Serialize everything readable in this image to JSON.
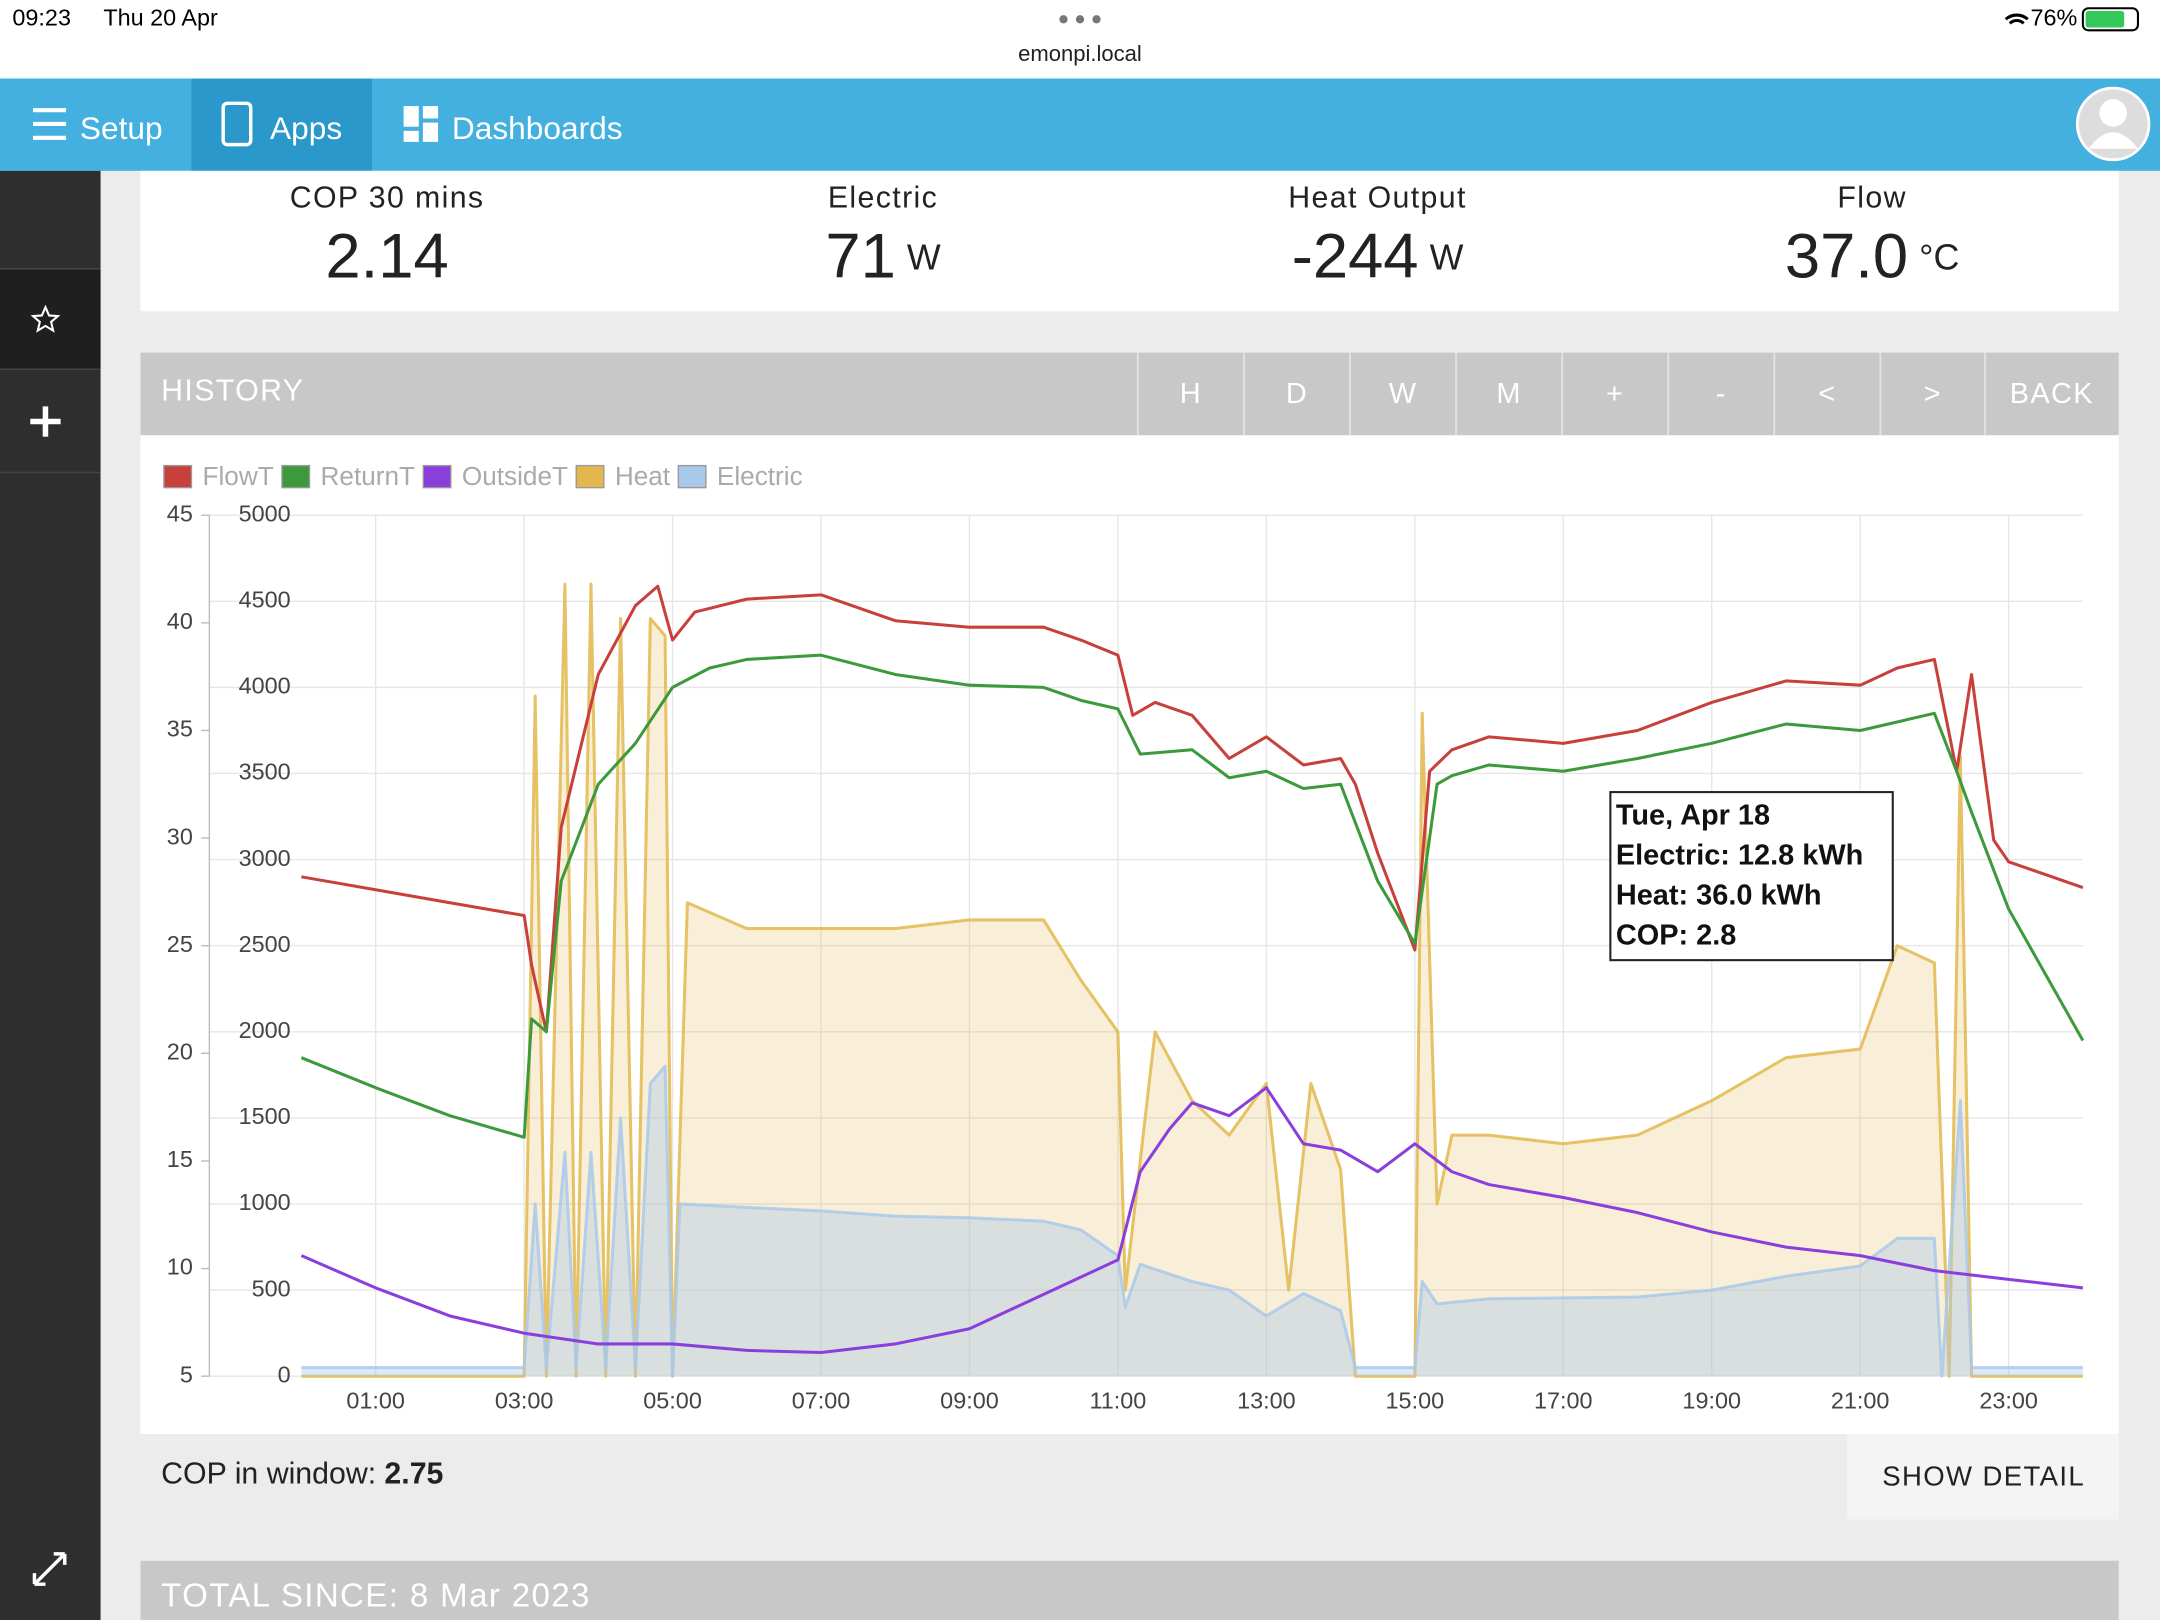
{
  "status_bar": {
    "time": "09:23",
    "date": "Thu 20 Apr",
    "url": "emonpi.local",
    "battery": "76%"
  },
  "nav": {
    "items": [
      "Setup",
      "Apps",
      "Dashboards"
    ]
  },
  "stats": [
    {
      "label": "COP 30 mins",
      "value": "2.14"
    },
    {
      "label": "Electric",
      "value": "71",
      "unit": "W"
    },
    {
      "label": "Heat Output",
      "value": "-244",
      "unit": "W"
    },
    {
      "label": "Flow",
      "value": "37.0",
      "unit": "°C"
    }
  ],
  "history": {
    "title": "HISTORY",
    "buttons": [
      "H",
      "D",
      "W",
      "M",
      "+",
      "-",
      "<",
      ">",
      "BACK"
    ]
  },
  "chart_data": {
    "type": "line",
    "xlim": [
      -1.24,
      24
    ],
    "xticks": [
      {
        "value": 1,
        "label": "01:00"
      },
      {
        "value": 3,
        "label": "03:00"
      },
      {
        "value": 5,
        "label": "05:00"
      },
      {
        "value": 7,
        "label": "07:00"
      },
      {
        "value": 9,
        "label": "09:00"
      },
      {
        "value": 11,
        "label": "11:00"
      },
      {
        "value": 13,
        "label": "13:00"
      },
      {
        "value": 15,
        "label": "15:00"
      },
      {
        "value": 17,
        "label": "17:00"
      },
      {
        "value": 19,
        "label": "19:00"
      },
      {
        "value": 21,
        "label": "21:00"
      },
      {
        "value": 23,
        "label": "23:00"
      }
    ],
    "ylim": [
      5,
      45
    ],
    "yticks": [
      5,
      10,
      15,
      20,
      25,
      30,
      35,
      40,
      45
    ],
    "y2lim": [
      0,
      5000
    ],
    "y2ticks": [
      0,
      500,
      1000,
      1500,
      2000,
      2500,
      3000,
      3500,
      4000,
      4500,
      5000
    ],
    "grid": true,
    "series": [
      {
        "name": "FlowT",
        "color": "#c8403c",
        "x": [
          0,
          1,
          2,
          3,
          3.1,
          3.3,
          3.5,
          4,
          4.5,
          4.8,
          5,
          5.3,
          6,
          7,
          8,
          9,
          10,
          10.5,
          11,
          11.2,
          11.5,
          12,
          12.5,
          13,
          13.5,
          14,
          14.2,
          14.5,
          15,
          15.2,
          15.5,
          16,
          17,
          18,
          19,
          20,
          21,
          21.5,
          22,
          22.3,
          22.5,
          22.8,
          23,
          24
        ],
        "values": [
          28.2,
          27.6,
          27.0,
          26.4,
          24.1,
          21.0,
          30.5,
          37.6,
          40.8,
          41.7,
          39.2,
          40.5,
          41.1,
          41.3,
          40.1,
          39.8,
          39.8,
          39.2,
          38.5,
          35.7,
          36.3,
          35.7,
          33.7,
          34.7,
          33.4,
          33.7,
          32.5,
          29.3,
          24.8,
          33.1,
          34.1,
          34.7,
          34.4,
          35.0,
          36.3,
          37.3,
          37.1,
          37.9,
          38.3,
          33.1,
          37.6,
          29.9,
          28.9,
          27.7
        ]
      },
      {
        "name": "ReturnT",
        "color": "#3c9a3c",
        "x": [
          0,
          1,
          2,
          3,
          3.1,
          3.3,
          3.5,
          4,
          4.5,
          5,
          5.5,
          6,
          7,
          8,
          9,
          10,
          10.5,
          11,
          11.3,
          12,
          12.5,
          13,
          13.5,
          14,
          14.5,
          15,
          15.3,
          15.5,
          16,
          17,
          18,
          19,
          20,
          21,
          22,
          22.3,
          22.5,
          23,
          24
        ],
        "values": [
          19.8,
          18.4,
          17.1,
          16.1,
          21.6,
          21.0,
          28.0,
          32.5,
          34.4,
          37.0,
          37.9,
          38.3,
          38.5,
          37.6,
          37.1,
          37.0,
          36.4,
          36.0,
          33.9,
          34.1,
          32.8,
          33.1,
          32.3,
          32.5,
          28.0,
          25.1,
          32.5,
          32.9,
          33.4,
          33.1,
          33.7,
          34.4,
          35.3,
          35.0,
          35.8,
          33.1,
          31.2,
          26.7,
          20.6
        ]
      },
      {
        "name": "OutsideT",
        "color": "#8a3fdc",
        "x": [
          0,
          1,
          2,
          3,
          4,
          5,
          6,
          7,
          8,
          9,
          10,
          11,
          11.3,
          11.7,
          12,
          12.5,
          13,
          13.5,
          14,
          14.5,
          15,
          15.5,
          16,
          17,
          18,
          19,
          20,
          21,
          22,
          23,
          24
        ],
        "values": [
          10.6,
          9.1,
          7.8,
          7.0,
          6.5,
          6.5,
          6.2,
          6.1,
          6.5,
          7.2,
          8.8,
          10.4,
          14.5,
          16.5,
          17.7,
          17.1,
          18.4,
          15.8,
          15.5,
          14.5,
          15.8,
          14.5,
          13.9,
          13.3,
          12.6,
          11.7,
          11.0,
          10.6,
          9.9,
          9.5,
          9.1
        ]
      },
      {
        "name": "Heat",
        "color": "#e2b84e",
        "axis": "y2",
        "area": true,
        "x": [
          0,
          3,
          3.15,
          3.3,
          3.55,
          3.7,
          3.9,
          4.1,
          4.3,
          4.5,
          4.7,
          4.9,
          5.0,
          5.2,
          6,
          7,
          8,
          9,
          10,
          10.5,
          11,
          11.1,
          11.5,
          12,
          12.5,
          13,
          13.3,
          13.6,
          14,
          14.2,
          15,
          15.1,
          15.3,
          15.5,
          16,
          17,
          18,
          19,
          20,
          21,
          21.5,
          22,
          22.2,
          22.35,
          22.5,
          24
        ],
        "values": [
          0,
          0,
          3950,
          0,
          4600,
          0,
          4600,
          0,
          4400,
          0,
          4400,
          4300,
          0,
          2750,
          2600,
          2600,
          2600,
          2650,
          2650,
          2300,
          2000,
          500,
          2000,
          1600,
          1400,
          1700,
          500,
          1700,
          1200,
          0,
          0,
          3850,
          1000,
          1400,
          1400,
          1350,
          1400,
          1600,
          1850,
          1900,
          2500,
          2400,
          0,
          3600,
          0,
          0
        ]
      },
      {
        "name": "Electric",
        "color": "#a9c9ea",
        "axis": "y2",
        "area": true,
        "x": [
          0,
          3,
          3.15,
          3.3,
          3.55,
          3.7,
          3.9,
          4.1,
          4.3,
          4.5,
          4.7,
          4.9,
          5.0,
          5.1,
          6,
          7,
          8,
          9,
          10,
          10.5,
          11,
          11.1,
          11.3,
          12,
          12.5,
          13,
          13.5,
          14,
          14.2,
          15,
          15.1,
          15.3,
          16,
          18,
          19,
          20,
          21,
          21.5,
          22,
          22.1,
          22.35,
          22.5,
          24
        ],
        "values": [
          50,
          50,
          1000,
          50,
          1300,
          50,
          1300,
          50,
          1500,
          50,
          1700,
          1800,
          0,
          1000,
          980,
          960,
          930,
          920,
          900,
          850,
          700,
          400,
          650,
          550,
          500,
          350,
          480,
          380,
          50,
          50,
          550,
          420,
          450,
          460,
          500,
          580,
          640,
          800,
          800,
          0,
          1600,
          50,
          50
        ]
      }
    ],
    "tooltip": [
      "Tue, Apr 18",
      "Electric: 12.8 kWh",
      "Heat: 36.0 kWh",
      "COP: 2.8"
    ]
  },
  "summary": {
    "label": "COP in window:",
    "value": "2.75",
    "button": "SHOW DETAIL"
  },
  "total": {
    "title": "TOTAL SINCE: 8 Mar 2023"
  }
}
